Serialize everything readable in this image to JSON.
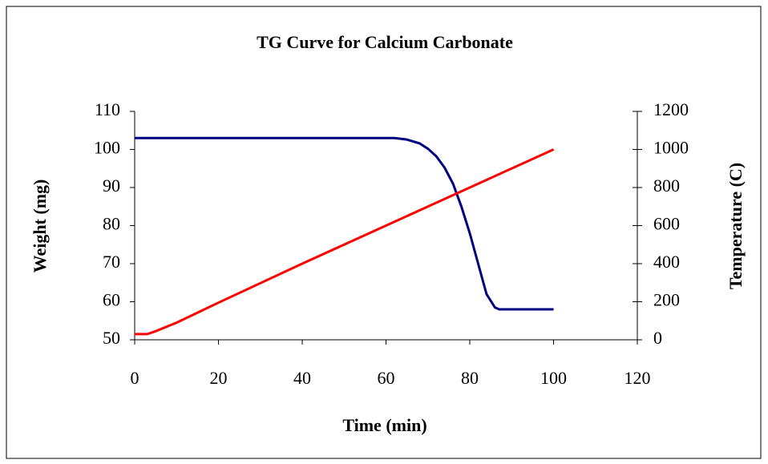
{
  "chart_data": {
    "type": "line",
    "title": "TG Curve for Calcium Carbonate",
    "x_label": "Time (min)",
    "y_label": "Weight (mg)",
    "y2_label": "Temperature (C)",
    "xlim": [
      0,
      120
    ],
    "xticks": [
      0,
      20,
      40,
      60,
      80,
      100,
      120
    ],
    "ylim": [
      50,
      110
    ],
    "yticks": [
      50,
      60,
      70,
      80,
      90,
      100,
      110
    ],
    "y2lim": [
      0,
      1200
    ],
    "y2ticks": [
      0,
      200,
      400,
      600,
      800,
      1000,
      1200
    ],
    "grid": false,
    "series": [
      {
        "name": "Weight",
        "color": "#000080",
        "axis": "y",
        "x": [
          0,
          20,
          40,
          62,
          65,
          68,
          70,
          72,
          74,
          76,
          78,
          80,
          82,
          84,
          86,
          87,
          100
        ],
        "values": [
          103,
          103,
          103,
          103,
          102.6,
          101.6,
          100.2,
          98.2,
          95.2,
          91,
          85,
          78,
          70,
          62,
          58.5,
          58,
          58
        ]
      },
      {
        "name": "Temperature",
        "color": "#ff0000",
        "axis": "y2",
        "x": [
          0,
          3,
          5,
          10,
          20,
          40,
          60,
          80,
          100
        ],
        "values": [
          30,
          30,
          45,
          90,
          195,
          400,
          600,
          800,
          1000
        ]
      }
    ]
  }
}
